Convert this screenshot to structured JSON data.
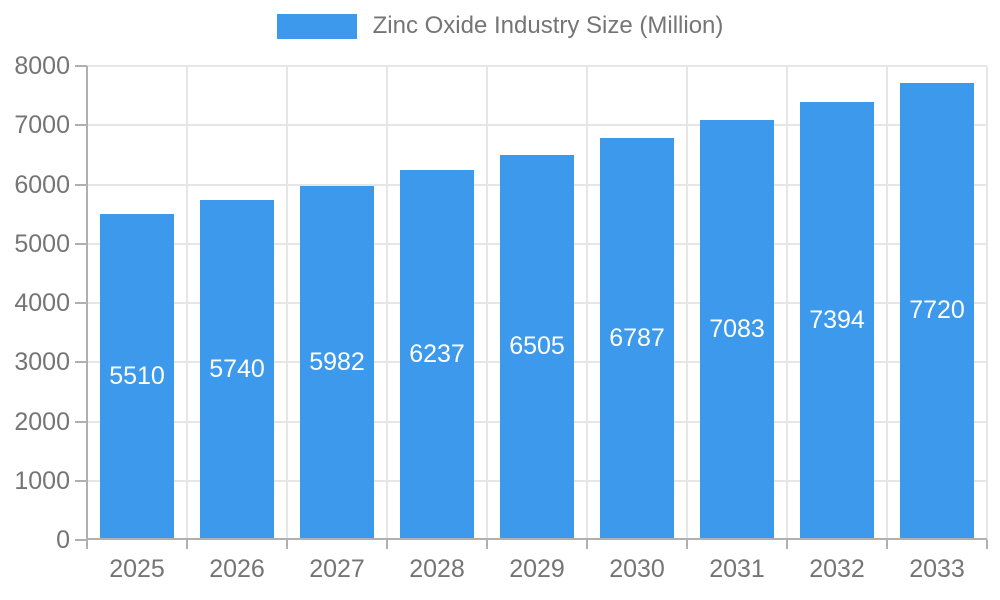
{
  "colors": {
    "bar": "#3C99EC",
    "grid": "#e6e6e6",
    "axis": "#b0b0b0",
    "text_muted": "#757575",
    "bar_label": "#ffffff",
    "background": "#ffffff"
  },
  "legend": {
    "label": "Zinc Oxide Industry Size (Million)"
  },
  "chart_data": {
    "type": "bar",
    "title": "Zinc Oxide Industry Size (Million)",
    "categories": [
      "2025",
      "2026",
      "2027",
      "2028",
      "2029",
      "2030",
      "2031",
      "2032",
      "2033"
    ],
    "values": [
      5510,
      5740,
      5982,
      6237,
      6505,
      6787,
      7083,
      7394,
      7720
    ],
    "xlabel": "",
    "ylabel": "",
    "ylim": [
      0,
      8000
    ],
    "yticks": [
      0,
      1000,
      2000,
      3000,
      4000,
      5000,
      6000,
      7000,
      8000
    ],
    "grid": true,
    "legend_position": "top",
    "bar_label_placement": "inside-middle"
  }
}
